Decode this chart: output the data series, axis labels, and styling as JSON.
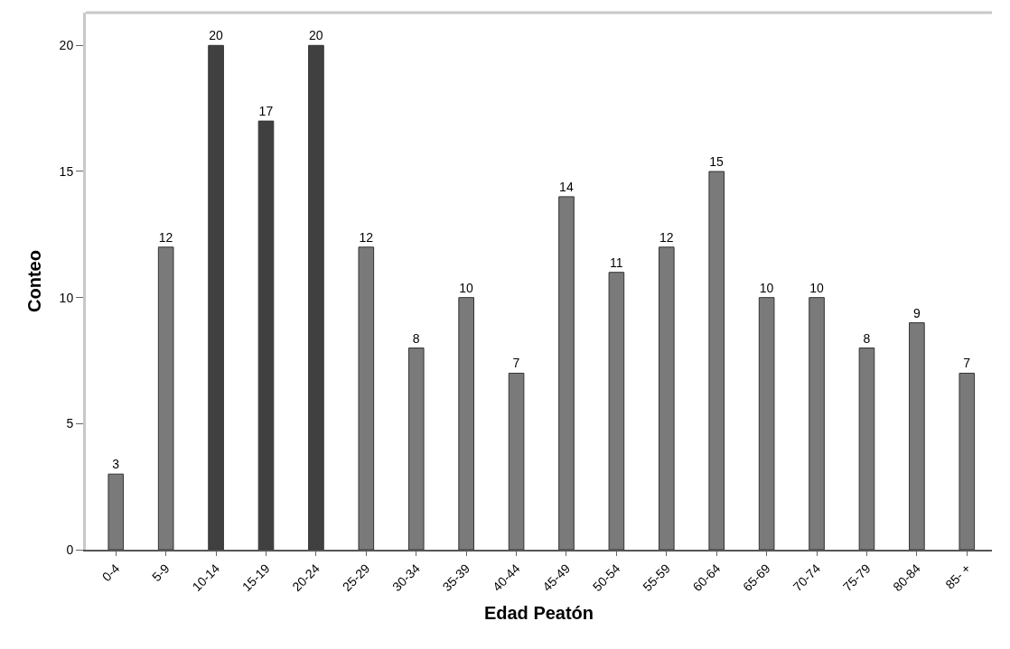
{
  "chart_data": {
    "type": "bar",
    "xlabel": "Edad Peatón",
    "ylabel": "Conteo",
    "categories": [
      "0-4",
      "5-9",
      "10-14",
      "15-19",
      "20-24",
      "25-29",
      "30-34",
      "35-39",
      "40-44",
      "45-49",
      "50-54",
      "55-59",
      "60-64",
      "65-69",
      "70-74",
      "75-79",
      "80-84",
      "85- +"
    ],
    "values": [
      3,
      12,
      20,
      17,
      20,
      12,
      8,
      10,
      7,
      14,
      11,
      12,
      15,
      10,
      10,
      8,
      9,
      7
    ],
    "colors": [
      "#7a7a7a",
      "#7a7a7a",
      "#404040",
      "#404040",
      "#404040",
      "#7a7a7a",
      "#7a7a7a",
      "#7a7a7a",
      "#7a7a7a",
      "#7a7a7a",
      "#7a7a7a",
      "#7a7a7a",
      "#7a7a7a",
      "#7a7a7a",
      "#7a7a7a",
      "#7a7a7a",
      "#7a7a7a",
      "#7a7a7a"
    ],
    "ylim": [
      0,
      21.3
    ],
    "yticks": [
      0,
      5,
      10,
      15,
      20
    ],
    "data_labels": true
  }
}
